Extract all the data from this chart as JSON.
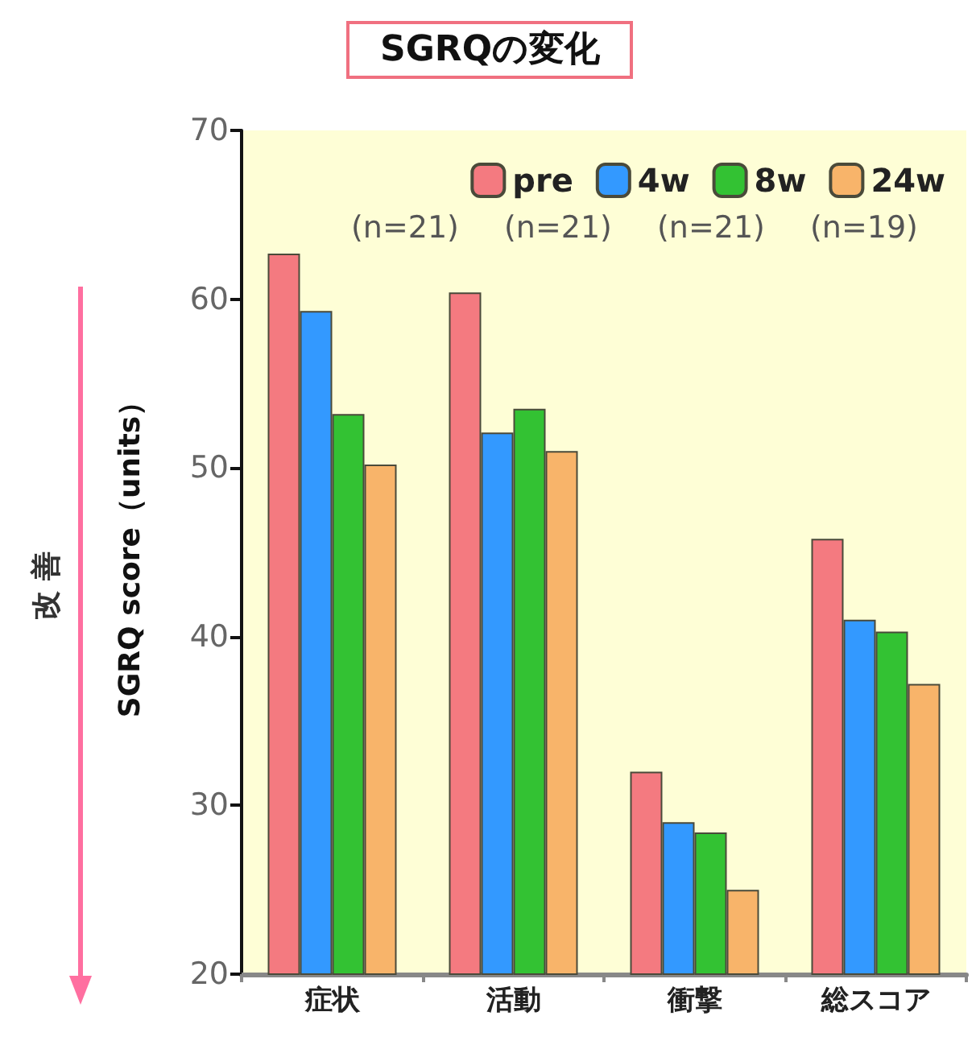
{
  "chart_data": {
    "type": "bar",
    "title": "SGRQの変化",
    "ylabel": "SGRQ score（units）",
    "categories": [
      "症状",
      "活動",
      "衝撃",
      "総スコア"
    ],
    "series": [
      {
        "name": "pre",
        "color": "#f47a80",
        "values": [
          62.7,
          60.4,
          32.0,
          45.8
        ]
      },
      {
        "name": "4w",
        "color": "#3399ff",
        "values": [
          59.3,
          52.1,
          29.0,
          41.0
        ]
      },
      {
        "name": "8w",
        "color": "#33c233",
        "values": [
          53.2,
          53.5,
          28.4,
          40.3
        ]
      },
      {
        "name": "24w",
        "color": "#f8b46a",
        "values": [
          50.2,
          51.0,
          25.0,
          37.2
        ]
      }
    ],
    "annotations": [
      "(n=21)",
      "(n=21)",
      "(n=21)",
      "(n=19)",
      "改善"
    ],
    "ylim": [
      20,
      70
    ],
    "yticks": [
      20,
      30,
      40,
      50,
      60,
      70
    ],
    "grid": false,
    "legend": "top right"
  }
}
